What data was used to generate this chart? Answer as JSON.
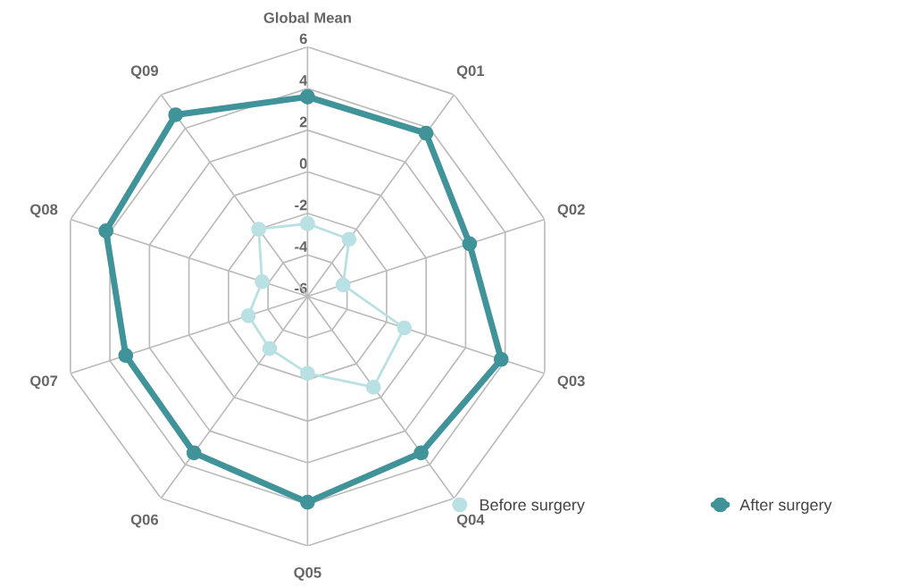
{
  "chart_data": {
    "type": "radar",
    "categories": [
      "Global Mean",
      "Q01",
      "Q02",
      "Q03",
      "Q04",
      "Q05",
      "Q06",
      "Q07",
      "Q08",
      "Q09"
    ],
    "series": [
      {
        "name": "Before surgery",
        "color": "#b9e0e3",
        "values": [
          -2.5,
          -2.6,
          -4.2,
          -1.1,
          -0.6,
          -2.3,
          -2.9,
          -3.0,
          -3.7,
          -2.0
        ]
      },
      {
        "name": "After surgery",
        "color": "#3f9399",
        "values": [
          3.6,
          3.7,
          2.2,
          3.8,
          3.3,
          3.9,
          3.3,
          3.2,
          4.2,
          4.8
        ]
      }
    ],
    "ylim": [
      -6,
      6
    ],
    "yticks": [
      -6,
      -4,
      -2,
      0,
      2,
      4,
      6
    ],
    "grid": true,
    "legend": "bottom",
    "marker": "circle"
  }
}
